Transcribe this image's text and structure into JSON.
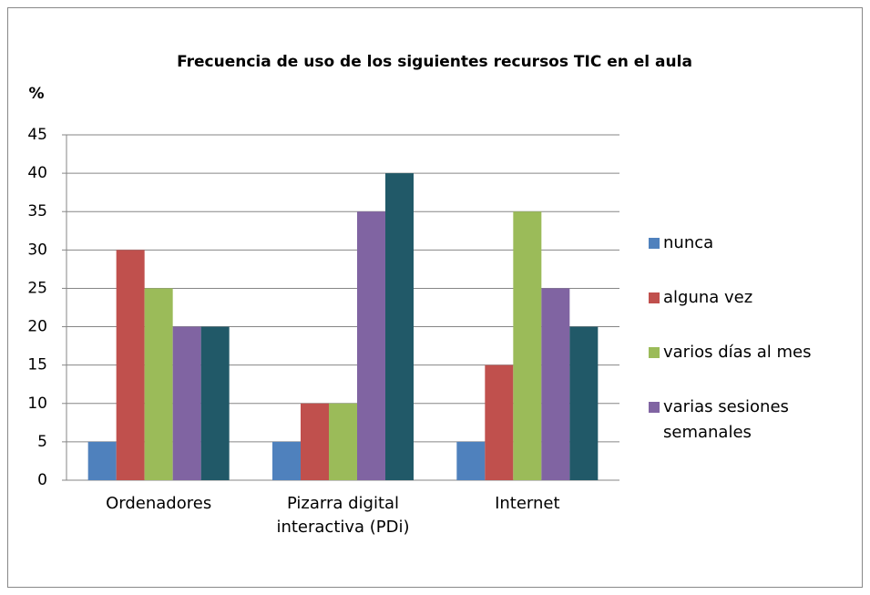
{
  "chart_data": {
    "type": "bar",
    "title": "Frecuencia de uso de los siguientes recursos TIC en el aula",
    "y_label": "%",
    "categories": [
      "Ordenadores",
      "Pizarra digital interactiva (PDi)",
      "Internet"
    ],
    "series": [
      {
        "name": "nunca",
        "color": "#4f81bd",
        "values": [
          5,
          5,
          5
        ]
      },
      {
        "name": "alguna vez",
        "color": "#c0504d",
        "values": [
          30,
          10,
          15
        ]
      },
      {
        "name": "varios días al mes",
        "color": "#9bbb59",
        "values": [
          25,
          10,
          35
        ]
      },
      {
        "name": "varias sesiones semanales",
        "color": "#8064a2",
        "values": [
          20,
          35,
          25
        ]
      },
      {
        "color": "#215968",
        "values": [
          20,
          40,
          20
        ]
      }
    ],
    "ylim": [
      0,
      45
    ],
    "yticks": [
      0,
      5,
      10,
      15,
      20,
      25,
      30,
      35,
      40,
      45
    ],
    "grid": true
  }
}
